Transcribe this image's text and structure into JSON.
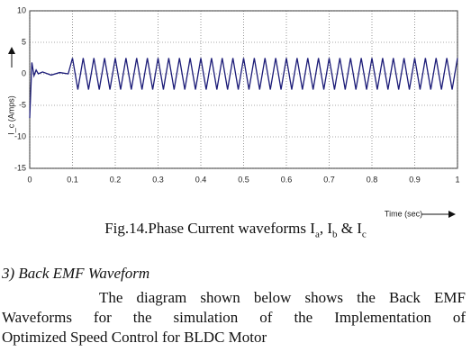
{
  "chart_data": {
    "type": "line",
    "x_label": "Time (sec)",
    "y_label": "I_c (Amps)",
    "xlim": [
      0,
      1
    ],
    "xticks": [
      0,
      0.1,
      0.2,
      0.3,
      0.4,
      0.5,
      0.6,
      0.7,
      0.8,
      0.9,
      1
    ],
    "ylim": [
      -15,
      10
    ],
    "yticks": [
      -15,
      -10,
      -5,
      0,
      5,
      10
    ],
    "grid": true,
    "series": [
      {
        "color": "#1c1c78",
        "x": [
          0,
          0.005,
          0.01,
          0.015,
          0.02,
          0.03,
          0.05,
          0.07,
          0.09,
          0.1,
          0.1125,
          0.125,
          0.1375,
          0.15,
          0.1625,
          0.175,
          0.1875,
          0.2,
          0.2125,
          0.225,
          0.2375,
          0.25,
          0.2625,
          0.275,
          0.2875,
          0.3,
          0.3125,
          0.325,
          0.3375,
          0.35,
          0.3625,
          0.375,
          0.3875,
          0.4,
          0.4125,
          0.425,
          0.4375,
          0.45,
          0.4625,
          0.475,
          0.4875,
          0.5,
          0.5125,
          0.525,
          0.5375,
          0.55,
          0.5625,
          0.575,
          0.5875,
          0.6,
          0.6125,
          0.625,
          0.6375,
          0.65,
          0.6625,
          0.675,
          0.6875,
          0.7,
          0.7125,
          0.725,
          0.7375,
          0.75,
          0.7625,
          0.775,
          0.7875,
          0.8,
          0.8125,
          0.825,
          0.8375,
          0.85,
          0.8625,
          0.875,
          0.8875,
          0.9,
          0.9125,
          0.925,
          0.9375,
          0.95,
          0.9625,
          0.975,
          0.9875,
          1
        ],
        "values": [
          -7,
          1.8,
          -0.3,
          0.6,
          0,
          0.3,
          -0.2,
          0.2,
          0,
          2.5,
          -2.5,
          2.5,
          -2.5,
          2.5,
          -2.5,
          2.5,
          -2.5,
          2.5,
          -2.5,
          2.5,
          -2.5,
          2.5,
          -2.5,
          2.5,
          -2.5,
          2.5,
          -2.5,
          2.5,
          -2.5,
          2.5,
          -2.5,
          2.5,
          -2.5,
          2.5,
          -2.5,
          2.5,
          -2.5,
          2.5,
          -2.5,
          2.5,
          -2.5,
          2.5,
          -2.5,
          2.5,
          -2.5,
          2.5,
          -2.5,
          2.5,
          -2.5,
          2.5,
          -2.5,
          2.5,
          -2.5,
          2.5,
          -2.5,
          2.5,
          -2.5,
          2.5,
          -2.5,
          2.5,
          -2.5,
          2.5,
          -2.5,
          2.5,
          -2.5,
          2.5,
          -2.5,
          2.5,
          -2.5,
          2.5,
          -2.5,
          2.5,
          -2.5,
          2.5,
          -2.5,
          2.5,
          -2.5,
          2.5,
          -2.5,
          2.5,
          -2.5,
          2.5
        ]
      }
    ]
  },
  "caption": [
    "Fig.14.Phase Current waveforms I",
    "a",
    ", I",
    "b",
    " & I",
    "c"
  ],
  "section_heading": "3) Back EMF Waveform",
  "paragraph": [
    "The diagram shown below shows the Back EMF",
    "Waveforms for the simulation of the Implementation of",
    "Optimized Speed Control for BLDC Motor"
  ]
}
